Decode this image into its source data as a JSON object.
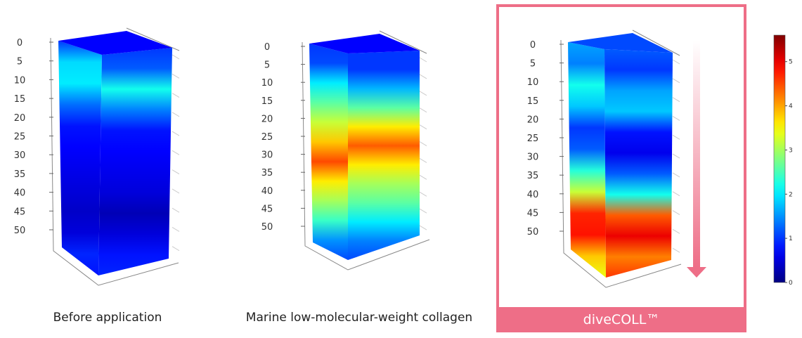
{
  "chart_data": {
    "type": "heatmap",
    "title": "",
    "colorbar": {
      "colormap": "jet",
      "range": [
        0,
        5.6
      ],
      "ticks": [
        0,
        1,
        2,
        3,
        4,
        5
      ]
    },
    "depth_ticks": [
      0,
      5,
      10,
      15,
      20,
      25,
      30,
      35,
      40,
      45,
      50
    ],
    "depth_samples": [
      0,
      5,
      10,
      15,
      20,
      25,
      30,
      35,
      40,
      45,
      50,
      55
    ],
    "panels": [
      {
        "label": "Before application",
        "highlight": false,
        "front_profile": [
          1.0,
          1.9,
          2.0,
          1.3,
          0.8,
          0.7,
          0.6,
          0.5,
          0.4,
          0.5,
          0.9,
          0.8
        ],
        "side_profile": [
          1.0,
          1.2,
          2.2,
          1.4,
          0.8,
          0.7,
          0.6,
          0.5,
          0.3,
          0.5,
          0.8,
          0.9
        ]
      },
      {
        "label": "Marine low-molecular-weight collagen",
        "highlight": false,
        "front_profile": [
          1.0,
          1.1,
          2.0,
          2.6,
          3.2,
          3.8,
          4.5,
          3.6,
          3.0,
          2.4,
          1.5,
          1.1
        ],
        "side_profile": [
          1.0,
          1.0,
          1.7,
          2.6,
          3.6,
          4.4,
          3.6,
          3.0,
          2.6,
          2.0,
          1.4,
          1.1
        ]
      },
      {
        "label": "diveCOLL™",
        "highlight": true,
        "front_profile": [
          1.6,
          1.4,
          2.2,
          1.8,
          1.0,
          1.2,
          2.3,
          3.2,
          4.7,
          4.8,
          3.8,
          3.4
        ],
        "side_profile": [
          1.2,
          1.0,
          1.6,
          1.8,
          0.8,
          0.6,
          1.2,
          2.2,
          4.4,
          5.0,
          4.2,
          4.6
        ]
      }
    ]
  },
  "colors": {
    "highlight": "#ee6e87"
  }
}
